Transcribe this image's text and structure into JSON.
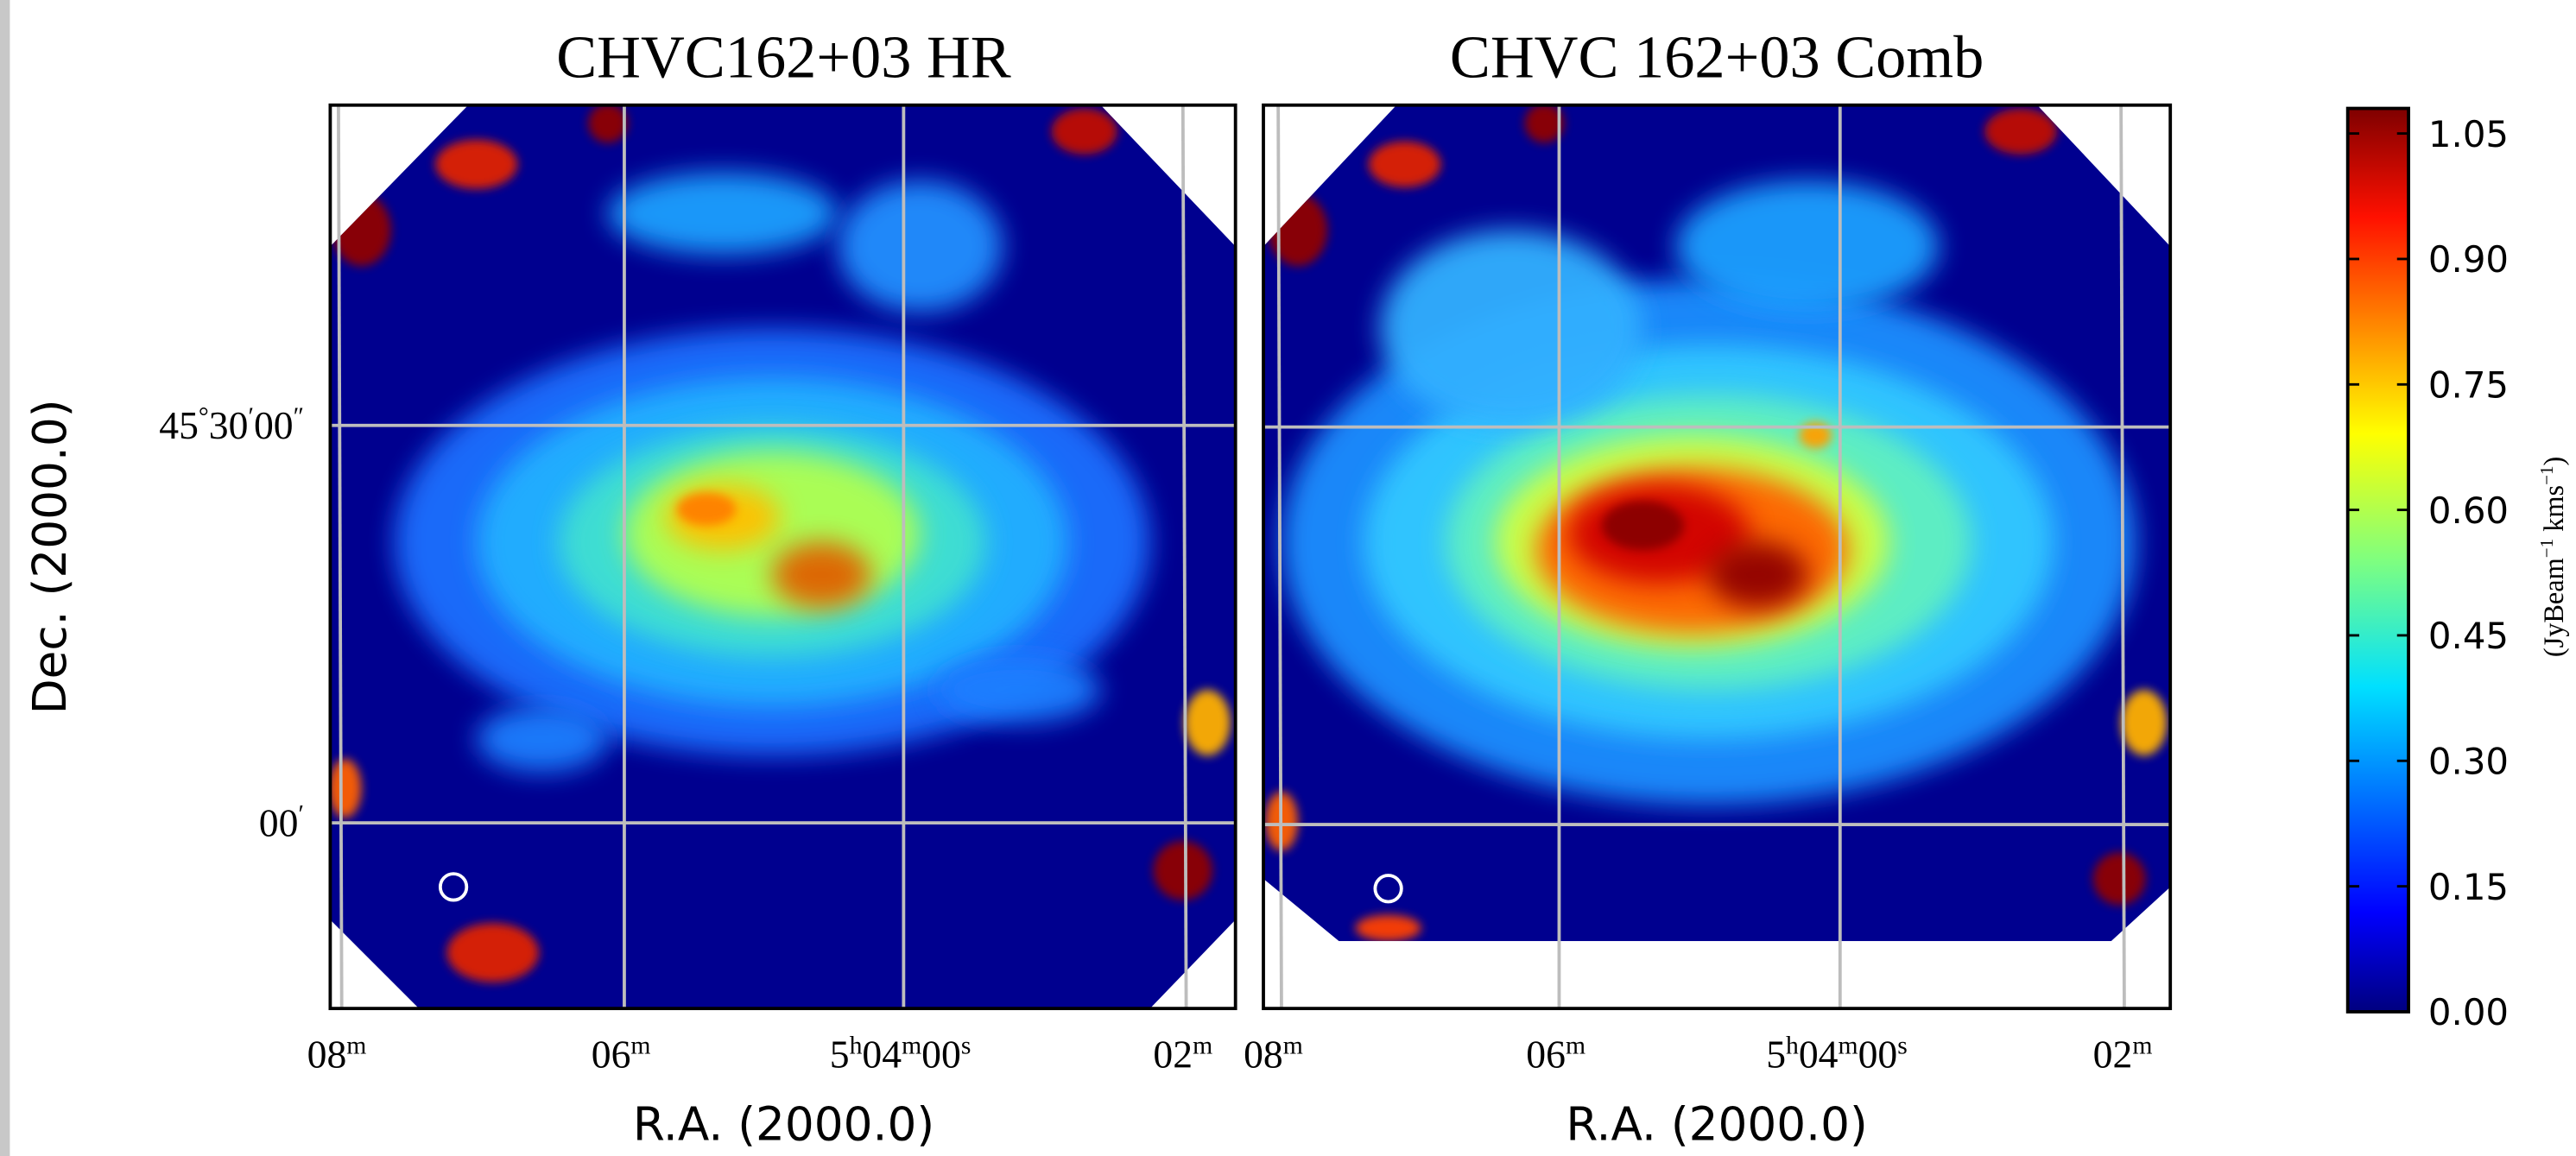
{
  "chart_data": [
    {
      "type": "map",
      "title": "CHVC162+03 HR",
      "xlabel": "R.A. (2000.0)",
      "ylabel": "Dec. (2000.0)",
      "xticks": [
        [
          "08",
          "m"
        ],
        [
          "06",
          "m"
        ],
        [
          "5",
          "h",
          "04",
          "m",
          "00",
          "s"
        ],
        [
          "02",
          "m"
        ]
      ],
      "yticks": [
        [
          "45",
          "°",
          "30",
          "′",
          "00",
          "″"
        ],
        [
          "00",
          "′"
        ]
      ]
    },
    {
      "type": "map",
      "title": "CHVC 162+03 Comb",
      "xlabel": "R.A. (2000.0)",
      "xticks": [
        [
          "08",
          "m"
        ],
        [
          "06",
          "m"
        ],
        [
          "5",
          "h",
          "04",
          "m",
          "00",
          "s"
        ],
        [
          "02",
          "m"
        ]
      ]
    }
  ],
  "colorbar": {
    "colormap": "jet",
    "label": [
      "(JyBeam",
      "−1",
      " kms",
      "−1",
      ")"
    ],
    "clim": [
      0,
      1.08
    ],
    "ticks": [
      {
        "value": 0,
        "label": "0.00"
      },
      {
        "value": 0.15,
        "label": "0.15"
      },
      {
        "value": 0.3,
        "label": "0.30"
      },
      {
        "value": 0.45,
        "label": "0.45"
      },
      {
        "value": 0.6,
        "label": "0.60"
      },
      {
        "value": 0.75,
        "label": "0.75"
      },
      {
        "value": 0.9,
        "label": "0.90"
      },
      {
        "value": 1.05,
        "label": "1.05"
      }
    ]
  }
}
